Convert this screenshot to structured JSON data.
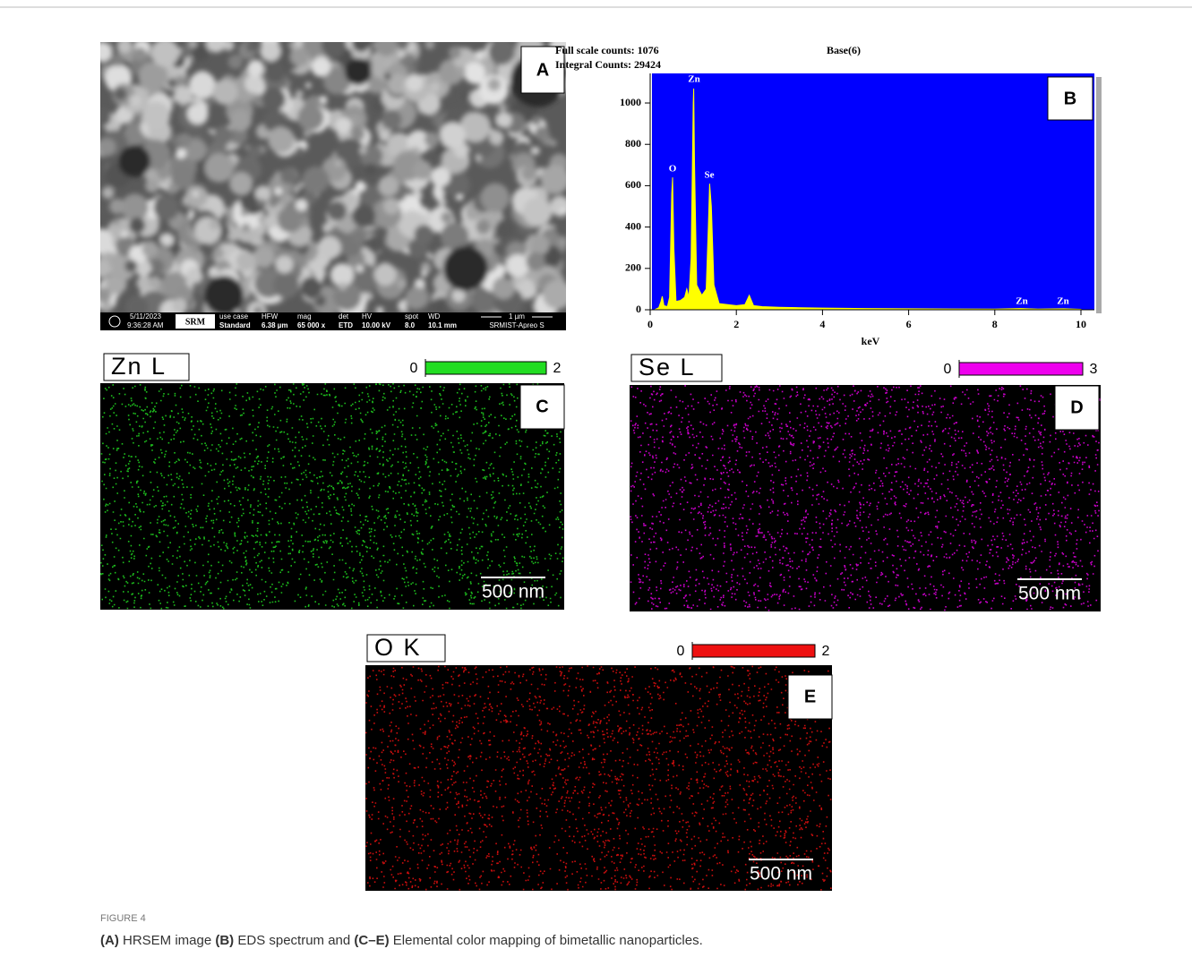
{
  "chart_data": {
    "type": "area",
    "full_scale": "Full scale counts: 1076",
    "integral": "Integral Counts: 29424",
    "base": "Base(6)",
    "x_label": "keV",
    "color": "#ffff00",
    "background": "#0000ff",
    "x": [
      0.1,
      0.2,
      0.25,
      0.28,
      0.32,
      0.4,
      0.45,
      0.5,
      0.52,
      0.55,
      0.6,
      0.7,
      0.8,
      0.85,
      0.9,
      0.95,
      1.0,
      1.01,
      1.03,
      1.08,
      1.15,
      1.2,
      1.3,
      1.35,
      1.38,
      1.42,
      1.48,
      1.6,
      1.8,
      2.0,
      2.2,
      2.3,
      2.4,
      2.6,
      3.0,
      3.5,
      4.0,
      5.0,
      6.0,
      7.0,
      8.0,
      8.6,
      9.0,
      9.6,
      10.0
    ],
    "values": [
      0,
      10,
      40,
      65,
      20,
      15,
      60,
      560,
      640,
      300,
      40,
      45,
      60,
      100,
      60,
      250,
      1000,
      1070,
      700,
      120,
      90,
      70,
      100,
      400,
      610,
      500,
      120,
      30,
      25,
      20,
      25,
      70,
      20,
      15,
      12,
      10,
      8,
      6,
      5,
      4,
      3,
      6,
      3,
      5,
      2
    ],
    "annotations": [
      "O",
      "Zn",
      "Se",
      "Zn",
      "Zn"
    ],
    "xlim": [
      0,
      10.3
    ],
    "ylim": [
      0,
      1143
    ],
    "xticks": [
      0,
      2,
      4,
      6,
      8,
      10
    ],
    "yticks": [
      0,
      200,
      400,
      600,
      800,
      1000
    ]
  },
  "panels": {
    "a": {
      "label": "A",
      "info_bar": {
        "date": "5/11/2023",
        "time": "9:36:28 AM",
        "logo": "SRM",
        "use_case_h": "use case",
        "use_case": "Standard",
        "hfw_h": "HFW",
        "hfw": "6.38 µm",
        "mag_h": "mag",
        "mag": "65 000 x",
        "det_h": "det",
        "det": "ETD",
        "hv_h": "HV",
        "hv": "10.00 kV",
        "spot_h": "spot",
        "spot": "8.0",
        "wd_h": "WD",
        "wd": "10.1 mm",
        "scale": "1 µm",
        "instrument": "SRMIST-Apreo S"
      }
    },
    "b": {
      "label": "B"
    },
    "c": {
      "label": "C",
      "element": "Zn L",
      "scale_min": 0,
      "scale_max": 2,
      "scale_bar": "500 nm",
      "color": "#22dd22"
    },
    "d": {
      "label": "D",
      "element": "Se L",
      "scale_min": 0,
      "scale_max": 3,
      "scale_bar": "500 nm",
      "color": "#ee00ee"
    },
    "e": {
      "label": "E",
      "element": "O K",
      "scale_min": 0,
      "scale_max": 2,
      "scale_bar": "500 nm",
      "color": "#ee1111"
    }
  },
  "caption": {
    "figure": "FIGURE 4",
    "segments": [
      {
        "text": "(A)",
        "bold": true
      },
      {
        "text": " HRSEM image ",
        "bold": false
      },
      {
        "text": "(B)",
        "bold": true
      },
      {
        "text": " EDS spectrum and ",
        "bold": false
      },
      {
        "text": "(C–E)",
        "bold": true
      },
      {
        "text": " Elemental color mapping of bimetallic nanoparticles.",
        "bold": false
      }
    ]
  }
}
